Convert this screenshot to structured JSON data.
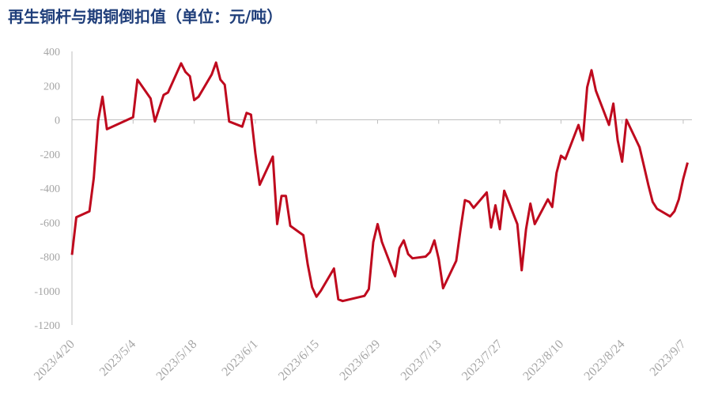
{
  "chart_data": {
    "type": "line",
    "title": "再生铜杆与期铜倒扣值（单位：元/吨）",
    "x": [
      "2023/4/20",
      "2023/4/21",
      "2023/4/24",
      "2023/4/25",
      "2023/4/26",
      "2023/4/27",
      "2023/4/28",
      "2023/5/4",
      "2023/5/5",
      "2023/5/8",
      "2023/5/9",
      "2023/5/11",
      "2023/5/12",
      "2023/5/15",
      "2023/5/16",
      "2023/5/17",
      "2023/5/18",
      "2023/5/19",
      "2023/5/22",
      "2023/5/23",
      "2023/5/24",
      "2023/5/25",
      "2023/5/26",
      "2023/5/29",
      "2023/5/30",
      "2023/5/31",
      "2023/6/1",
      "2023/6/2",
      "2023/6/5",
      "2023/6/6",
      "2023/6/7",
      "2023/6/8",
      "2023/6/9",
      "2023/6/12",
      "2023/6/13",
      "2023/6/14",
      "2023/6/15",
      "2023/6/16",
      "2023/6/19",
      "2023/6/20",
      "2023/6/21",
      "2023/6/26",
      "2023/6/27",
      "2023/6/28",
      "2023/6/29",
      "2023/6/30",
      "2023/7/3",
      "2023/7/4",
      "2023/7/5",
      "2023/7/6",
      "2023/7/7",
      "2023/7/10",
      "2023/7/11",
      "2023/7/12",
      "2023/7/13",
      "2023/7/14",
      "2023/7/17",
      "2023/7/18",
      "2023/7/19",
      "2023/7/20",
      "2023/7/21",
      "2023/7/24",
      "2023/7/25",
      "2023/7/26",
      "2023/7/27",
      "2023/7/28",
      "2023/7/31",
      "2023/8/1",
      "2023/8/2",
      "2023/8/3",
      "2023/8/4",
      "2023/8/7",
      "2023/8/8",
      "2023/8/9",
      "2023/8/10",
      "2023/8/11",
      "2023/8/14",
      "2023/8/15",
      "2023/8/16",
      "2023/8/17",
      "2023/8/18",
      "2023/8/21",
      "2023/8/22",
      "2023/8/23",
      "2023/8/24",
      "2023/8/25",
      "2023/8/28",
      "2023/8/29",
      "2023/8/30",
      "2023/8/31",
      "2023/9/1",
      "2023/9/4",
      "2023/9/5",
      "2023/9/6",
      "2023/9/7",
      "2023/9/8"
    ],
    "series": [
      {
        "name": "倒扣值",
        "color": "#bf0a1e",
        "values": [
          -790,
          -570,
          -535,
          -340,
          -5,
          135,
          -55,
          15,
          235,
          125,
          -10,
          145,
          160,
          330,
          280,
          255,
          115,
          135,
          265,
          335,
          235,
          205,
          -10,
          -40,
          40,
          30,
          -195,
          -380,
          -215,
          -610,
          -445,
          -445,
          -620,
          -675,
          -845,
          -980,
          -1035,
          -1000,
          -870,
          -1050,
          -1060,
          -1030,
          -990,
          -715,
          -610,
          -715,
          -915,
          -750,
          -705,
          -785,
          -810,
          -800,
          -775,
          -705,
          -815,
          -985,
          -825,
          -640,
          -470,
          -480,
          -515,
          -425,
          -630,
          -500,
          -640,
          -415,
          -610,
          -880,
          -640,
          -490,
          -610,
          -465,
          -510,
          -310,
          -210,
          -230,
          -30,
          -120,
          190,
          290,
          170,
          -30,
          95,
          -120,
          -245,
          0,
          -160,
          -270,
          -380,
          -480,
          -520,
          -565,
          -535,
          -465,
          -345,
          -250
        ]
      }
    ],
    "xlim": [
      "2023/4/20",
      "2023/9/9"
    ],
    "xticks": [
      "2023/4/20",
      "2023/5/4",
      "2023/5/18",
      "2023/6/1",
      "2023/6/15",
      "2023/6/29",
      "2023/7/13",
      "2023/7/27",
      "2023/8/10",
      "2023/8/24",
      "2023/9/7"
    ],
    "ylim": [
      -1200,
      400
    ],
    "yticks": [
      400,
      200,
      0,
      -200,
      -400,
      -600,
      -800,
      -1000,
      -1200
    ],
    "grid": false
  }
}
